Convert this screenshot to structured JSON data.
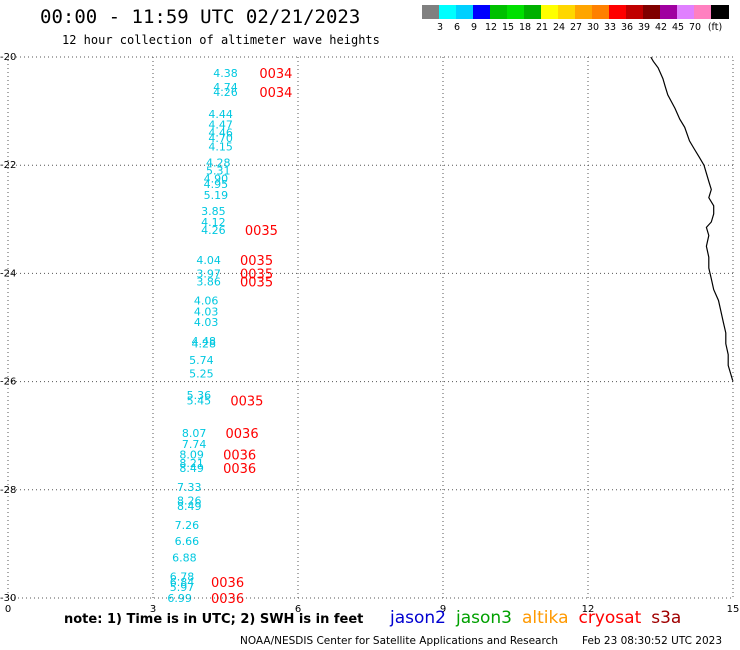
{
  "header": {
    "title": "00:00 - 11:59 UTC 02/21/2023",
    "subtitle": "12 hour collection of altimeter wave heights"
  },
  "color_legend": {
    "unit": "(ft)",
    "colors": [
      "#808080",
      "#00ffff",
      "#00d0ff",
      "#0000ff",
      "#00c000",
      "#00e000",
      "#00b000",
      "#ffff00",
      "#ffd700",
      "#ffa500",
      "#ff8000",
      "#ff0000",
      "#c00000",
      "#800000",
      "#a000a0",
      "#e080ff",
      "#ff80c0",
      "#000000"
    ],
    "labels": [
      "3",
      "6",
      "9",
      "12",
      "15",
      "18",
      "21",
      "24",
      "27",
      "30",
      "33",
      "36",
      "39",
      "42",
      "45",
      "70"
    ]
  },
  "map": {
    "x_ticks": [
      "0",
      "3",
      "6",
      "9",
      "12",
      "15"
    ],
    "y_ticks": [
      "-20",
      "-22",
      "-24",
      "-26",
      "-28",
      "-30"
    ],
    "xlim": [
      0,
      15
    ],
    "ylim": [
      -30,
      -20
    ],
    "coastline_color": "#000000",
    "swh_color": "#00c8e0",
    "time_color": "#ff0000"
  },
  "observations": [
    {
      "lon": 4.5,
      "lat": -20.3,
      "swh": "4.38"
    },
    {
      "lon": 4.5,
      "lat": -20.55,
      "swh": "4.74"
    },
    {
      "lon": 4.5,
      "lat": -20.65,
      "swh": "4.26"
    },
    {
      "lon": 4.4,
      "lat": -21.05,
      "swh": "4.44"
    },
    {
      "lon": 4.4,
      "lat": -21.25,
      "swh": "4.47"
    },
    {
      "lon": 4.4,
      "lat": -21.4,
      "swh": "4.46"
    },
    {
      "lon": 4.4,
      "lat": -21.5,
      "swh": "4.70"
    },
    {
      "lon": 4.4,
      "lat": -21.65,
      "swh": "4.15"
    },
    {
      "lon": 4.35,
      "lat": -21.95,
      "swh": "4.28"
    },
    {
      "lon": 4.35,
      "lat": -22.1,
      "swh": "5.31"
    },
    {
      "lon": 4.3,
      "lat": -22.25,
      "swh": "4.90"
    },
    {
      "lon": 4.3,
      "lat": -22.35,
      "swh": "4.95"
    },
    {
      "lon": 4.3,
      "lat": -22.55,
      "swh": "5.19"
    },
    {
      "lon": 4.25,
      "lat": -22.85,
      "swh": "3.85"
    },
    {
      "lon": 4.25,
      "lat": -23.05,
      "swh": "4.12"
    },
    {
      "lon": 4.25,
      "lat": -23.2,
      "swh": "4.26"
    },
    {
      "lon": 4.15,
      "lat": -23.75,
      "swh": "4.04"
    },
    {
      "lon": 4.15,
      "lat": -24.0,
      "swh": "3.97"
    },
    {
      "lon": 4.15,
      "lat": -24.15,
      "swh": "3.86"
    },
    {
      "lon": 4.1,
      "lat": -24.5,
      "swh": "4.06"
    },
    {
      "lon": 4.1,
      "lat": -24.7,
      "swh": "4.03"
    },
    {
      "lon": 4.1,
      "lat": -24.9,
      "swh": "4.03"
    },
    {
      "lon": 4.05,
      "lat": -25.25,
      "swh": "4.48"
    },
    {
      "lon": 4.05,
      "lat": -25.3,
      "swh": "4.28"
    },
    {
      "lon": 4.0,
      "lat": -25.6,
      "swh": "5.74"
    },
    {
      "lon": 4.0,
      "lat": -25.85,
      "swh": "5.25"
    },
    {
      "lon": 3.95,
      "lat": -26.25,
      "swh": "5.36"
    },
    {
      "lon": 3.95,
      "lat": -26.35,
      "swh": "5.45"
    },
    {
      "lon": 3.85,
      "lat": -26.95,
      "swh": "8.07"
    },
    {
      "lon": 3.85,
      "lat": -27.15,
      "swh": "7.74"
    },
    {
      "lon": 3.8,
      "lat": -27.35,
      "swh": "8.09"
    },
    {
      "lon": 3.8,
      "lat": -27.5,
      "swh": "8.21"
    },
    {
      "lon": 3.8,
      "lat": -27.6,
      "swh": "8.49"
    },
    {
      "lon": 3.75,
      "lat": -27.95,
      "swh": "7.33"
    },
    {
      "lon": 3.75,
      "lat": -28.2,
      "swh": "8.26"
    },
    {
      "lon": 3.75,
      "lat": -28.3,
      "swh": "8.49"
    },
    {
      "lon": 3.7,
      "lat": -28.65,
      "swh": "7.26"
    },
    {
      "lon": 3.7,
      "lat": -28.95,
      "swh": "6.66"
    },
    {
      "lon": 3.65,
      "lat": -29.25,
      "swh": "6.88"
    },
    {
      "lon": 3.6,
      "lat": -29.6,
      "swh": "6.78"
    },
    {
      "lon": 3.6,
      "lat": -29.7,
      "swh": "6.84"
    },
    {
      "lon": 3.6,
      "lat": -29.8,
      "swh": "5.97"
    },
    {
      "lon": 3.55,
      "lat": -30.0,
      "swh": "6.99"
    }
  ],
  "time_labels": [
    {
      "lon": 5.2,
      "lat": -20.3,
      "text": "0034"
    },
    {
      "lon": 5.2,
      "lat": -20.65,
      "text": "0034"
    },
    {
      "lon": 4.9,
      "lat": -23.2,
      "text": "0035"
    },
    {
      "lon": 4.8,
      "lat": -23.75,
      "text": "0035"
    },
    {
      "lon": 4.8,
      "lat": -24.0,
      "text": "0035"
    },
    {
      "lon": 4.8,
      "lat": -24.15,
      "text": "0035"
    },
    {
      "lon": 4.6,
      "lat": -26.35,
      "text": "0035"
    },
    {
      "lon": 4.5,
      "lat": -26.95,
      "text": "0036"
    },
    {
      "lon": 4.45,
      "lat": -27.35,
      "text": "0036"
    },
    {
      "lon": 4.45,
      "lat": -27.6,
      "text": "0036"
    },
    {
      "lon": 4.2,
      "lat": -29.7,
      "text": "0036"
    },
    {
      "lon": 4.2,
      "lat": -30.0,
      "text": "0036"
    }
  ],
  "coastline": [
    [
      13.3,
      -20.0
    ],
    [
      13.35,
      -20.08
    ],
    [
      13.45,
      -20.2
    ],
    [
      13.55,
      -20.4
    ],
    [
      13.6,
      -20.55
    ],
    [
      13.65,
      -20.7
    ],
    [
      13.8,
      -20.95
    ],
    [
      13.9,
      -21.15
    ],
    [
      14.0,
      -21.3
    ],
    [
      14.1,
      -21.55
    ],
    [
      14.2,
      -21.7
    ],
    [
      14.3,
      -21.85
    ],
    [
      14.4,
      -22.0
    ],
    [
      14.45,
      -22.15
    ],
    [
      14.5,
      -22.3
    ],
    [
      14.55,
      -22.45
    ],
    [
      14.5,
      -22.6
    ],
    [
      14.6,
      -22.75
    ],
    [
      14.6,
      -22.9
    ],
    [
      14.55,
      -23.05
    ],
    [
      14.45,
      -23.15
    ],
    [
      14.5,
      -23.3
    ],
    [
      14.45,
      -23.5
    ],
    [
      14.5,
      -23.7
    ],
    [
      14.5,
      -23.9
    ],
    [
      14.55,
      -24.1
    ],
    [
      14.6,
      -24.3
    ],
    [
      14.7,
      -24.5
    ],
    [
      14.75,
      -24.7
    ],
    [
      14.8,
      -24.9
    ],
    [
      14.85,
      -25.1
    ],
    [
      14.85,
      -25.3
    ],
    [
      14.9,
      -25.5
    ],
    [
      14.9,
      -25.7
    ],
    [
      14.95,
      -25.85
    ],
    [
      15.0,
      -26.0
    ]
  ],
  "footer": {
    "note": "note: 1) Time is in UTC; 2) SWH is in feet",
    "missions": [
      {
        "name": "jason2",
        "color": "#0000d0"
      },
      {
        "name": "jason3",
        "color": "#00a000"
      },
      {
        "name": "altika",
        "color": "#ff9900"
      },
      {
        "name": "cryosat",
        "color": "#ff0000"
      },
      {
        "name": "s3a",
        "color": "#a00000"
      }
    ],
    "credit": "NOAA/NESDIS Center for Satellite Applications and Research",
    "stamp": "Feb 23 08:30:52 UTC 2023"
  }
}
